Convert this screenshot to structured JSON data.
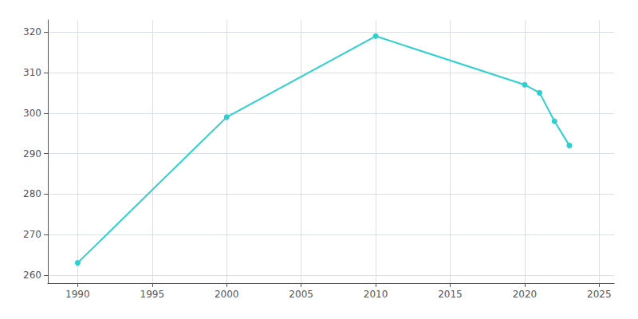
{
  "chart_data": {
    "type": "line",
    "x": [
      1990,
      2000,
      2010,
      2020,
      2021,
      2022,
      2023
    ],
    "values": [
      263,
      299,
      319,
      307,
      305,
      298,
      292
    ],
    "color": "#2ecfcf",
    "marker": "circle",
    "xlim": [
      1988,
      2026
    ],
    "ylim": [
      258,
      323
    ],
    "xticks": [
      1990,
      1995,
      2000,
      2005,
      2010,
      2015,
      2020,
      2025
    ],
    "yticks": [
      260,
      270,
      280,
      290,
      300,
      310,
      320
    ],
    "grid": true
  }
}
